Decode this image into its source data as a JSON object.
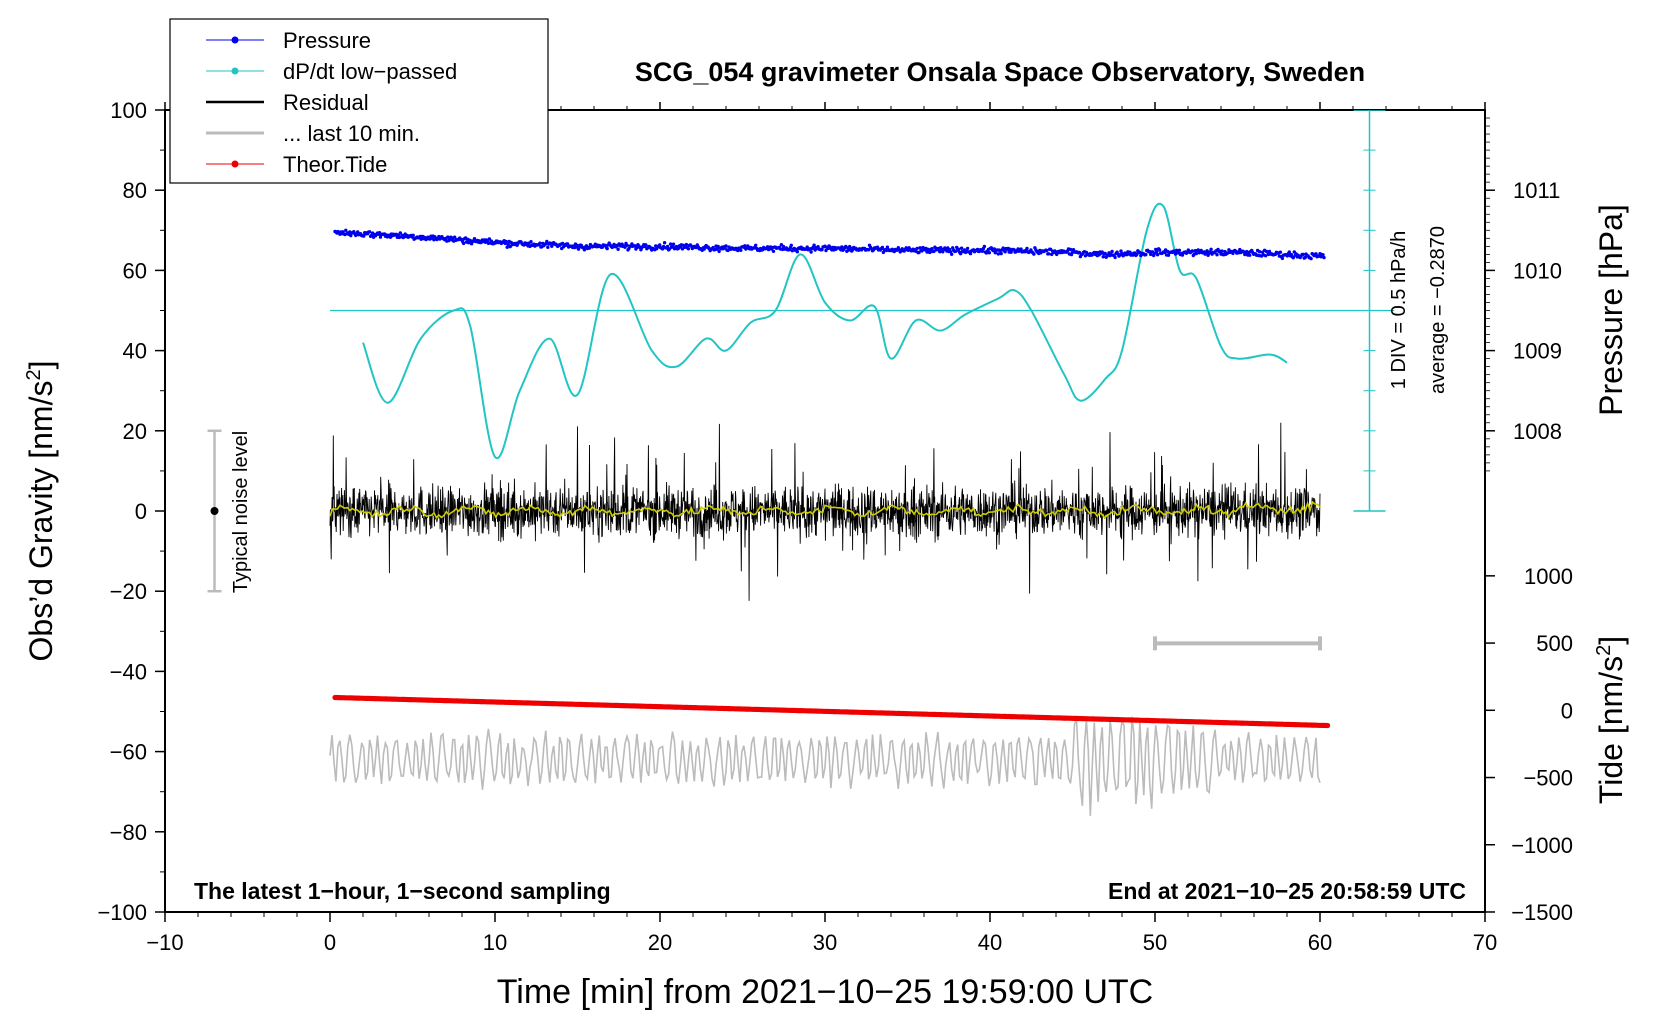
{
  "chart_data": {
    "type": "line",
    "title": "SCG_054 gravimeter Onsala Space Observatory, Sweden",
    "xlabel": "Time [min] from 2021−10−25 19:59:00 UTC",
    "ylabel_left": "Obs’d Gravity [nm/s",
    "ylabel_left_sup": "2",
    "ylabel_left_end": "]",
    "ylabel_right_pressure": "Pressure [hPa]",
    "ylabel_right_tide": "Tide [nm/s",
    "ylabel_right_tide_sup": "2",
    "ylabel_right_tide_end": "]",
    "xlim": [
      -10,
      70
    ],
    "ylim": [
      -100,
      100
    ],
    "x_ticks": [
      -10,
      0,
      10,
      20,
      30,
      40,
      50,
      60,
      70
    ],
    "x_tick_labels": [
      "−10",
      "0",
      "10",
      "20",
      "30",
      "40",
      "50",
      "60",
      "70"
    ],
    "y_ticks": [
      -100,
      -80,
      -60,
      -40,
      -20,
      0,
      20,
      40,
      60,
      80,
      100
    ],
    "y_tick_labels": [
      "−100",
      "−80",
      "−60",
      "−40",
      "−20",
      "0",
      "20",
      "40",
      "60",
      "80",
      "100"
    ],
    "pressure_axis": {
      "ticks": [
        1008,
        1009,
        1010,
        1011
      ],
      "tick_labels": [
        "1008",
        "1009",
        "1010",
        "1011"
      ],
      "gravity_at_1008": 20,
      "gravity_per_hPa": 20
    },
    "tide_axis": {
      "ticks": [
        1000,
        500,
        0,
        -500,
        -1000,
        -1500
      ],
      "tick_labels": [
        "1000",
        "500",
        "0",
        "−500",
        "−1000",
        "−1500"
      ],
      "gravity_at_0": -49.7,
      "gravity_per_unit": 0.03353
    },
    "legend": {
      "placement": "top-left",
      "entries": [
        {
          "label": "Pressure",
          "color": "#0000ee",
          "marker": true
        },
        {
          "label": "dP/dt low−passed",
          "color": "#22c4c4",
          "marker": true
        },
        {
          "label": "Residual",
          "color": "#000000",
          "marker": false
        },
        {
          "label": "... last 10 min.",
          "color": "#bbbbbb",
          "marker": false
        },
        {
          "label": "Theor.Tide",
          "color": "#ee0000",
          "marker": true
        }
      ]
    },
    "dpdt_scale": {
      "label1": "1 DIV = 0.5 hPa/h",
      "label2": "average = −0.2870",
      "x": 63,
      "y_range": [
        0,
        100
      ],
      "div": 10,
      "baseline_y": 50
    },
    "noise_bar": {
      "label": "Typical noise level",
      "x": -7,
      "range": [
        -20,
        20
      ],
      "center": 0
    },
    "last10_bar": {
      "x_range": [
        50,
        60
      ],
      "y": -33
    },
    "annotations": {
      "bottom_left": "The latest 1−hour, 1−second sampling",
      "bottom_right": "End at 2021−10−25 20:58:59 UTC"
    },
    "series": [
      {
        "name": "Pressure",
        "color": "#0000ee",
        "x": [
          0.3,
          5,
          10,
          15,
          20,
          25,
          30,
          35,
          40,
          45,
          47,
          50,
          55,
          60.3
        ],
        "y": [
          69.5,
          68.5,
          67,
          66,
          66,
          65.5,
          65.5,
          65,
          65,
          64.5,
          64,
          64.5,
          64.5,
          63.5
        ]
      },
      {
        "name": "dP/dt low-passed",
        "color": "#22c4c4",
        "x": [
          2.0,
          3.5,
          5.5,
          7.5,
          8.5,
          10.0,
          11.5,
          13.3,
          15.0,
          17.0,
          19.5,
          21.0,
          22.8,
          24.0,
          25.5,
          27.0,
          28.5,
          30.0,
          31.5,
          33.0,
          34.0,
          35.5,
          37.0,
          38.5,
          40.5,
          41.5,
          42.5,
          44.5,
          45.5,
          47.0,
          48.0,
          49.5,
          50.5,
          51.5,
          52.5,
          54.0,
          55.0,
          57.0,
          58.0
        ],
        "y": [
          42,
          27,
          43,
          50,
          46,
          13.5,
          30,
          43,
          29,
          59,
          40,
          36,
          43,
          40,
          47,
          50,
          64,
          52,
          47.5,
          51,
          38,
          47.5,
          45,
          49,
          53,
          55,
          50,
          34,
          27.5,
          33,
          40,
          70,
          76,
          60,
          58,
          41,
          38,
          39,
          37
        ]
      },
      {
        "name": "Residual",
        "color": "#000000",
        "x_range": [
          0,
          60
        ],
        "smooth_color": "#cccc00"
      },
      {
        "name": "... last 10 min.",
        "color": "#bbbbbb",
        "x_range": [
          0,
          60
        ]
      },
      {
        "name": "Theor.Tide",
        "color": "#ee0000",
        "x": [
          0.3,
          60.5
        ],
        "y": [
          -46.5,
          -53.5
        ]
      }
    ]
  }
}
